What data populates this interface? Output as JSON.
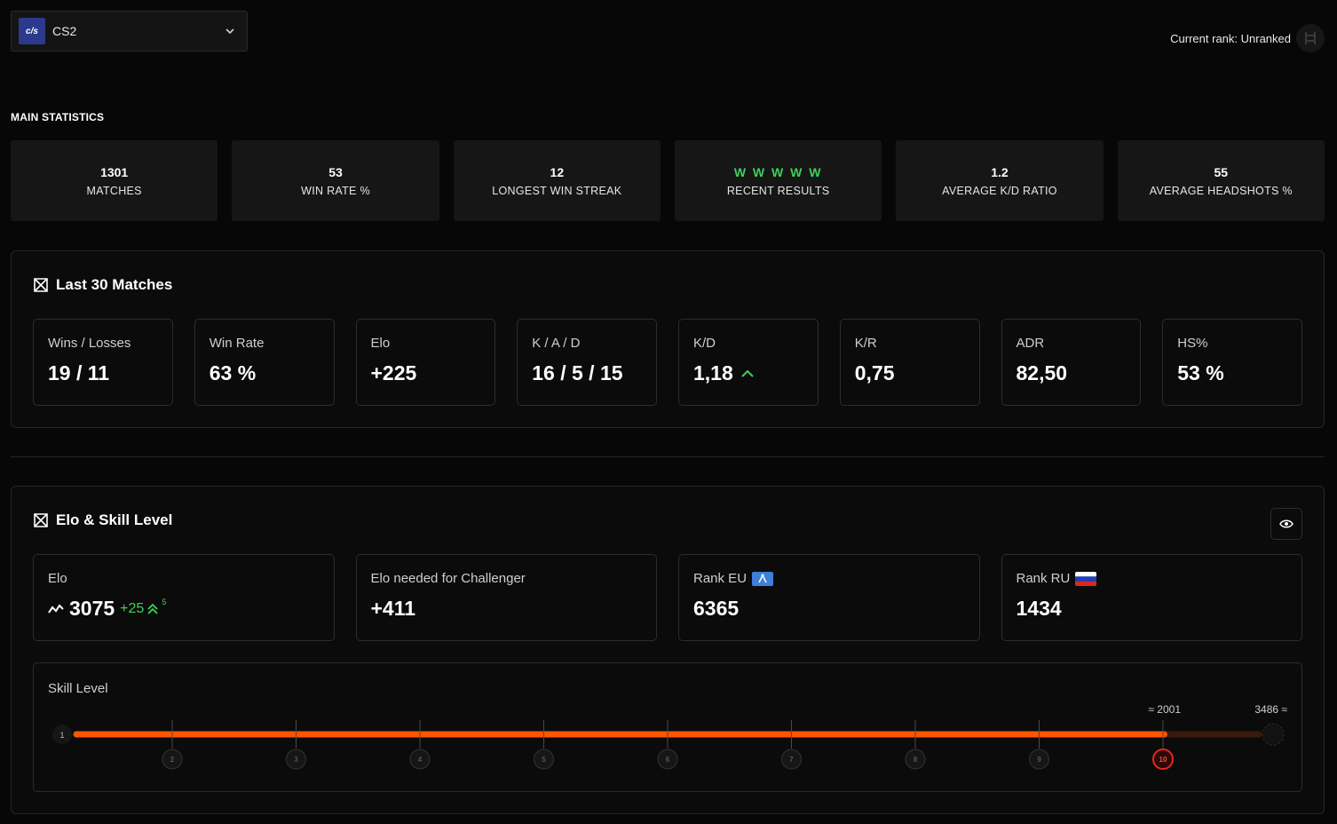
{
  "header": {
    "game_logo_text": "c/s",
    "game_name": "CS2",
    "current_rank": "Current rank: Unranked"
  },
  "main_statistics": {
    "title": "MAIN STATISTICS",
    "cards": [
      {
        "value": "1301",
        "label": "MATCHES"
      },
      {
        "value": "53",
        "label": "WIN RATE %"
      },
      {
        "value": "12",
        "label": "LONGEST WIN STREAK"
      },
      {
        "value": "W W W W W",
        "label": "RECENT RESULTS"
      },
      {
        "value": "1.2",
        "label": "AVERAGE K/D RATIO"
      },
      {
        "value": "55",
        "label": "AVERAGE HEADSHOTS %"
      }
    ]
  },
  "last30": {
    "title": "Last 30 Matches",
    "cards": [
      {
        "label": "Wins / Losses",
        "value": "19 / 11"
      },
      {
        "label": "Win Rate",
        "value": "63 %"
      },
      {
        "label": "Elo",
        "value": "+225"
      },
      {
        "label": "K / A / D",
        "value": "16 / 5 / 15"
      },
      {
        "label": "K/D",
        "value": "1,18"
      },
      {
        "label": "K/R",
        "value": "0,75"
      },
      {
        "label": "ADR",
        "value": "82,50"
      },
      {
        "label": "HS%",
        "value": "53 %"
      }
    ]
  },
  "elo_section": {
    "title": "Elo & Skill Level",
    "elo": {
      "label": "Elo",
      "value": "3075",
      "delta": "+25",
      "delta_streak": "5"
    },
    "challenger": {
      "label": "Elo needed for Challenger",
      "value": "+411"
    },
    "rank_eu": {
      "label": "Rank EU",
      "value": "6365"
    },
    "rank_ru": {
      "label": "Rank RU",
      "value": "1434"
    },
    "skill": {
      "label": "Skill Level",
      "levels": [
        "1",
        "2",
        "3",
        "4",
        "5",
        "6",
        "7",
        "8",
        "9",
        "10"
      ],
      "current_level": "10",
      "threshold_level10": "2001",
      "challenger_threshold": "3486",
      "progress": 0.92
    }
  },
  "colors": {
    "accent_orange": "#ff5500",
    "win_green": "#3ed15a",
    "level10_red": "#e8261c"
  }
}
